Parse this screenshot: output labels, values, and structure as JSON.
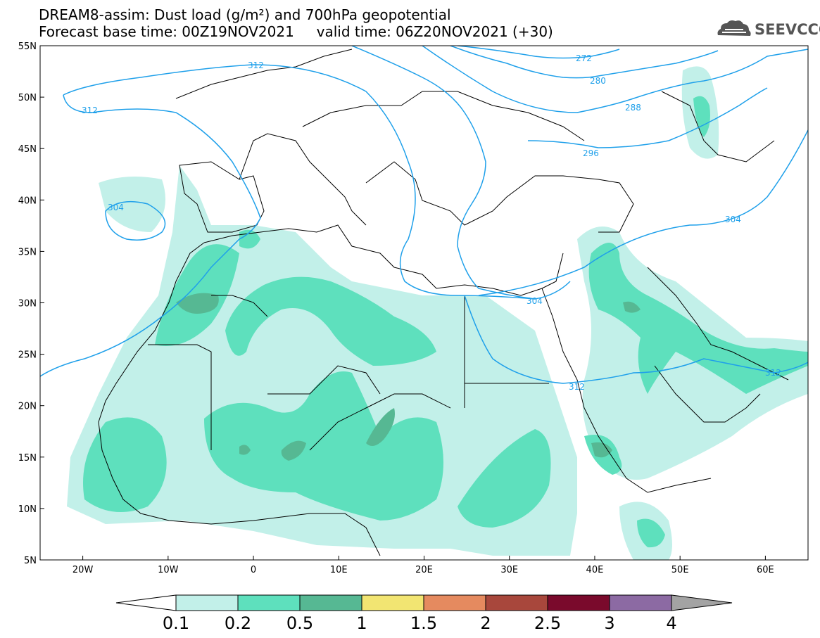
{
  "title": {
    "line1": "DREAM8-assim: Dust load (g/m²) and 700hPa geopotential",
    "line2": "Forecast base time: 00Z19NOV2021     valid time: 06Z20NOV2021 (+30)"
  },
  "logo": {
    "text": "SEEVCCC",
    "icon": "cloud-logo-icon"
  },
  "axes": {
    "lat_labels": [
      "55N",
      "50N",
      "45N",
      "40N",
      "35N",
      "30N",
      "25N",
      "20N",
      "15N",
      "10N",
      "5N"
    ],
    "lon_labels": [
      "20W",
      "10W",
      "0",
      "10E",
      "20E",
      "30E",
      "40E",
      "50E",
      "60E"
    ],
    "lon_range": [
      -25,
      65
    ],
    "lat_range": [
      5,
      55
    ]
  },
  "contours": {
    "color": "#1fa0ea",
    "labels": [
      "312",
      "312",
      "304",
      "272",
      "280",
      "288",
      "296",
      "304",
      "304",
      "312",
      "312"
    ]
  },
  "colorbar": {
    "labels": [
      "0.1",
      "0.2",
      "0.5",
      "1",
      "1.5",
      "2",
      "2.5",
      "3",
      "4"
    ],
    "colors": [
      "#c2f0e9",
      "#5ee0bd",
      "#56b893",
      "#f2e572",
      "#e58a5f",
      "#a8473c",
      "#7a0a2c",
      "#8c6aa3",
      "#a3a3a3"
    ],
    "values": [
      0.1,
      0.2,
      0.5,
      1,
      1.5,
      2,
      2.5,
      3,
      4
    ]
  },
  "dust_colors": {
    "light": "#c2f0e9",
    "medium": "#5ee0bd",
    "dark": "#56b893"
  }
}
